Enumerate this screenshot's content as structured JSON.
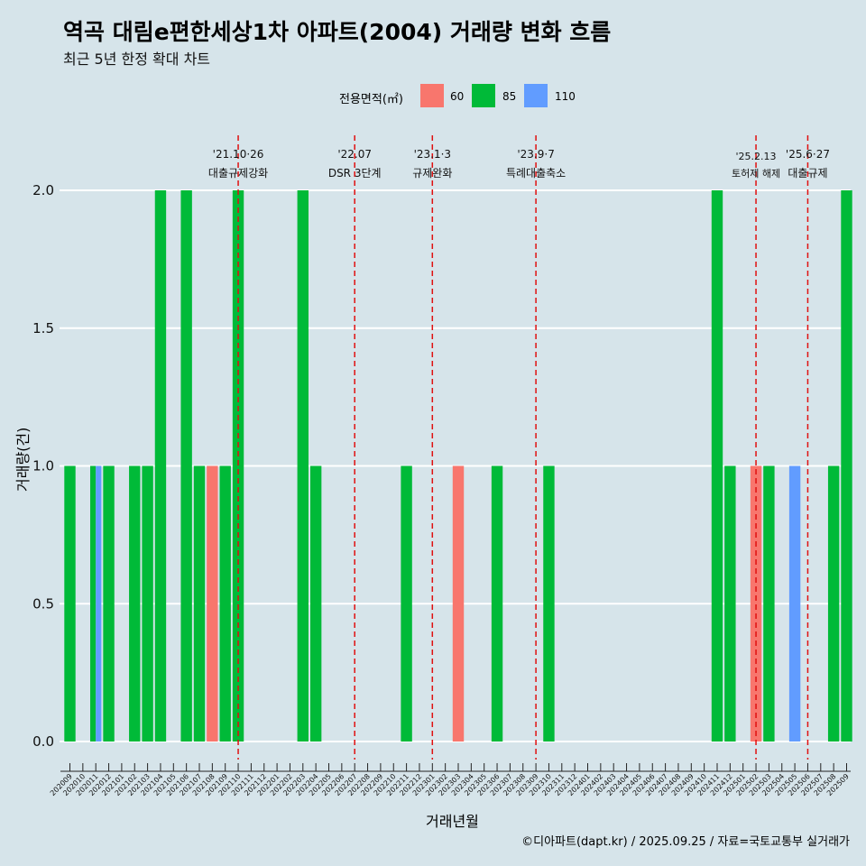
{
  "header": {
    "title": "역곡 대림e편한세상1차 아파트(2004) 거래량 변화 흐름",
    "subtitle": "최근 5년 한정 확대 차트"
  },
  "legend": {
    "title": "전용면적(㎡)",
    "entries": [
      {
        "label": "60",
        "color": "#F8766D"
      },
      {
        "label": "85",
        "color": "#00BA38"
      },
      {
        "label": "110",
        "color": "#619CFF"
      }
    ]
  },
  "caption": "©디아파트(dapt.kr) / 2025.09.25 / 자료=국토교통부 실거래가",
  "chart_data": {
    "type": "bar",
    "title": "역곡 대림e편한세상1차 아파트(2004) 거래량 변화 흐름",
    "xlabel": "거래년월",
    "ylabel": "거래량(건)",
    "ylim": [
      0,
      2.0
    ],
    "yticks": [
      "0.0",
      "0.5",
      "1.0",
      "1.5",
      "2.0"
    ],
    "categories": [
      "202009",
      "202010",
      "202011",
      "202012",
      "202101",
      "202102",
      "202103",
      "202104",
      "202105",
      "202106",
      "202107",
      "202108",
      "202109",
      "202110",
      "202111",
      "202112",
      "202201",
      "202202",
      "202203",
      "202204",
      "202205",
      "202206",
      "202207",
      "202208",
      "202209",
      "202210",
      "202211",
      "202212",
      "202301",
      "202302",
      "202303",
      "202304",
      "202305",
      "202306",
      "202307",
      "202308",
      "202309",
      "202310",
      "202311",
      "202312",
      "202401",
      "202402",
      "202403",
      "202404",
      "202405",
      "202406",
      "202407",
      "202408",
      "202409",
      "202410",
      "202411",
      "202412",
      "202501",
      "202502",
      "202503",
      "202504",
      "202505",
      "202506",
      "202507",
      "202508",
      "202509"
    ],
    "series": [
      {
        "name": "60",
        "color": "#F8766D",
        "values": [
          0,
          0,
          0,
          0,
          0,
          0,
          0,
          0,
          0,
          0,
          0,
          1,
          0,
          0,
          0,
          0,
          0,
          0,
          0,
          0,
          0,
          0,
          0,
          0,
          0,
          0,
          0,
          0,
          0,
          0,
          1,
          0,
          0,
          0,
          0,
          0,
          0,
          0,
          0,
          0,
          0,
          0,
          0,
          0,
          0,
          0,
          0,
          0,
          0,
          0,
          0,
          0,
          0,
          1,
          0,
          0,
          0,
          0,
          0,
          0,
          0
        ]
      },
      {
        "name": "85",
        "color": "#00BA38",
        "values": [
          1,
          0,
          1,
          1,
          0,
          1,
          1,
          2,
          0,
          2,
          1,
          0,
          1,
          2,
          0,
          0,
          0,
          0,
          2,
          1,
          0,
          0,
          0,
          0,
          0,
          0,
          1,
          0,
          0,
          0,
          0,
          0,
          0,
          1,
          0,
          0,
          0,
          1,
          0,
          0,
          0,
          0,
          0,
          0,
          0,
          0,
          0,
          0,
          0,
          0,
          2,
          1,
          0,
          0,
          1,
          0,
          0,
          0,
          0,
          1,
          2
        ]
      },
      {
        "name": "110",
        "color": "#619CFF",
        "values": [
          0,
          0,
          1,
          0,
          0,
          0,
          0,
          0,
          0,
          0,
          0,
          0,
          0,
          0,
          0,
          0,
          0,
          0,
          0,
          0,
          0,
          0,
          0,
          0,
          0,
          0,
          0,
          0,
          0,
          0,
          0,
          0,
          0,
          0,
          0,
          0,
          0,
          0,
          0,
          0,
          0,
          0,
          0,
          0,
          0,
          0,
          0,
          0,
          0,
          0,
          0,
          0,
          0,
          0,
          0,
          0,
          1,
          0,
          0,
          0,
          0
        ]
      }
    ],
    "annotations": [
      {
        "category": "202110",
        "date": "'21.10·26",
        "label": "대출규제강화"
      },
      {
        "category": "202207",
        "date": "'22.07",
        "label": "DSR 3단계"
      },
      {
        "category": "202301",
        "date": "'23.1·3",
        "label": "규제완화"
      },
      {
        "category": "202309",
        "date": "'23.9·7",
        "label": "특례대출축소"
      },
      {
        "category": "202502",
        "date": "'25.2.13",
        "label": "토허제 해제"
      },
      {
        "category": "202506",
        "date": "'25.6·27",
        "label": "대출규제"
      }
    ]
  }
}
